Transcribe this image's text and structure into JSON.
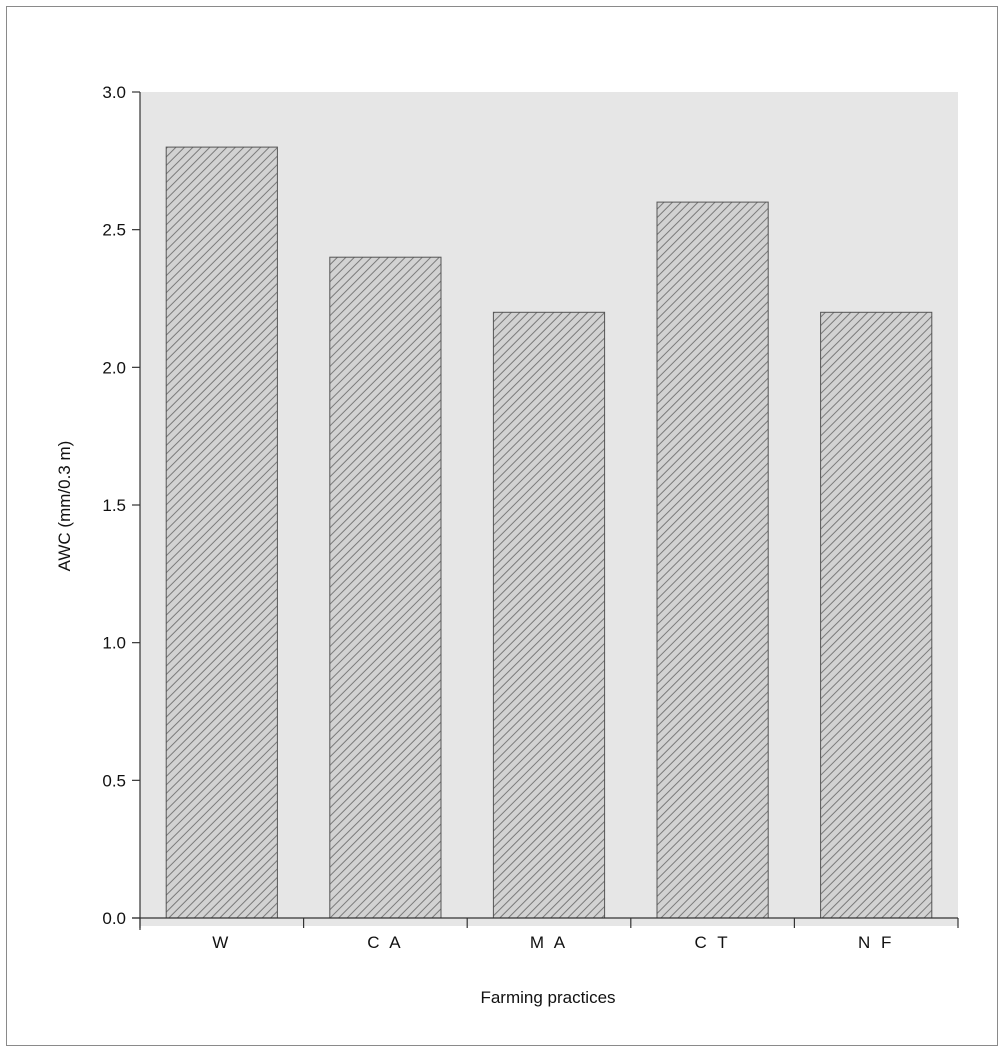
{
  "chart_data": {
    "type": "bar",
    "title": "",
    "xlabel": "Farming practices",
    "ylabel": "AWC (mm/0.3 m)",
    "categories": [
      "W",
      "C A",
      "M A",
      "C T",
      "N F"
    ],
    "values": [
      2.8,
      2.4,
      2.2,
      2.6,
      2.2
    ],
    "ylim": [
      0,
      3.0
    ],
    "yticks": [
      "0.0",
      "0.5",
      "1.0",
      "1.5",
      "2.0",
      "2.5",
      "3.0"
    ],
    "grid": false,
    "legend": "none",
    "colors": {
      "plot_background": "#e6e6e6",
      "bar_fill": "#cfcfcf",
      "bar_hatch": "#7a7a7a",
      "axis": "#333333"
    }
  }
}
